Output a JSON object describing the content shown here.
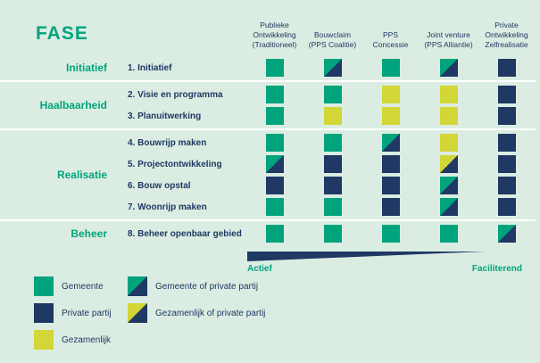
{
  "title": "FASE",
  "colors": {
    "background": "#DBEDE2",
    "gemeente_green": "#00A47C",
    "private_navy": "#1F3864",
    "gezamenlijk_yellow": "#D2D636",
    "separator_white": "#FFFFFF"
  },
  "columns": [
    {
      "label": "Publieke Ontwikkeling (Traditioneel)",
      "lines": [
        "Publieke",
        "Ontwikkeling",
        "(Traditioneel)"
      ]
    },
    {
      "label": "Bouwclaim (PPS Coalitie)",
      "lines": [
        "Bouwclaim",
        "(PPS Coalitie)"
      ]
    },
    {
      "label": "PPS Concessie",
      "lines": [
        "PPS",
        "Concessie"
      ]
    },
    {
      "label": "Joint venture (PPS Alliantie)",
      "lines": [
        "Joint venture",
        "(PPS Alliantie)"
      ]
    },
    {
      "label": "Private Ontwikkeling Zelfrealisatie",
      "lines": [
        "Private",
        "Ontwikkeling",
        "Zelfrealisatie"
      ]
    }
  ],
  "cell_key": {
    "G": "Gemeente",
    "N": "Private partij",
    "Y": "Gezamenlijk",
    "GN": "Gemeente of private partij",
    "YN": "Gezamenlijk of private partij"
  },
  "phases": [
    {
      "label": "Initiatief",
      "rows": [
        {
          "label": "1. Initiatief",
          "cells": [
            "G",
            "GN",
            "G",
            "GN",
            "N"
          ]
        }
      ]
    },
    {
      "label": "Haalbaarheid",
      "rows": [
        {
          "label": "2. Visie en programma",
          "cells": [
            "G",
            "G",
            "Y",
            "Y",
            "N"
          ]
        },
        {
          "label": "3. Planuitwerking",
          "cells": [
            "G",
            "Y",
            "Y",
            "Y",
            "N"
          ]
        }
      ]
    },
    {
      "label": "Realisatie",
      "rows": [
        {
          "label": "4. Bouwrijp maken",
          "cells": [
            "G",
            "G",
            "GN",
            "Y",
            "N"
          ]
        },
        {
          "label": "5. Projectontwikkeling",
          "cells": [
            "GN",
            "N",
            "N",
            "YN",
            "N"
          ]
        },
        {
          "label": "6. Bouw opstal",
          "cells": [
            "N",
            "N",
            "N",
            "GN",
            "N"
          ]
        },
        {
          "label": "7. Woonrijp maken",
          "cells": [
            "G",
            "G",
            "N",
            "GN",
            "N"
          ]
        }
      ]
    },
    {
      "label": "Beheer",
      "rows": [
        {
          "label": "8. Beheer openbaar gebied",
          "cells": [
            "G",
            "G",
            "G",
            "G",
            "GN"
          ]
        }
      ]
    }
  ],
  "axis": {
    "left": "Actief",
    "right": "Faciliterend"
  },
  "legend": [
    {
      "type": "G",
      "label": "Gemeente"
    },
    {
      "type": "N",
      "label": "Private partij"
    },
    {
      "type": "Y",
      "label": "Gezamenlijk"
    },
    {
      "type": "GN",
      "label": "Gemeente of private partij"
    },
    {
      "type": "YN",
      "label": "Gezamenlijk of private partij"
    }
  ]
}
